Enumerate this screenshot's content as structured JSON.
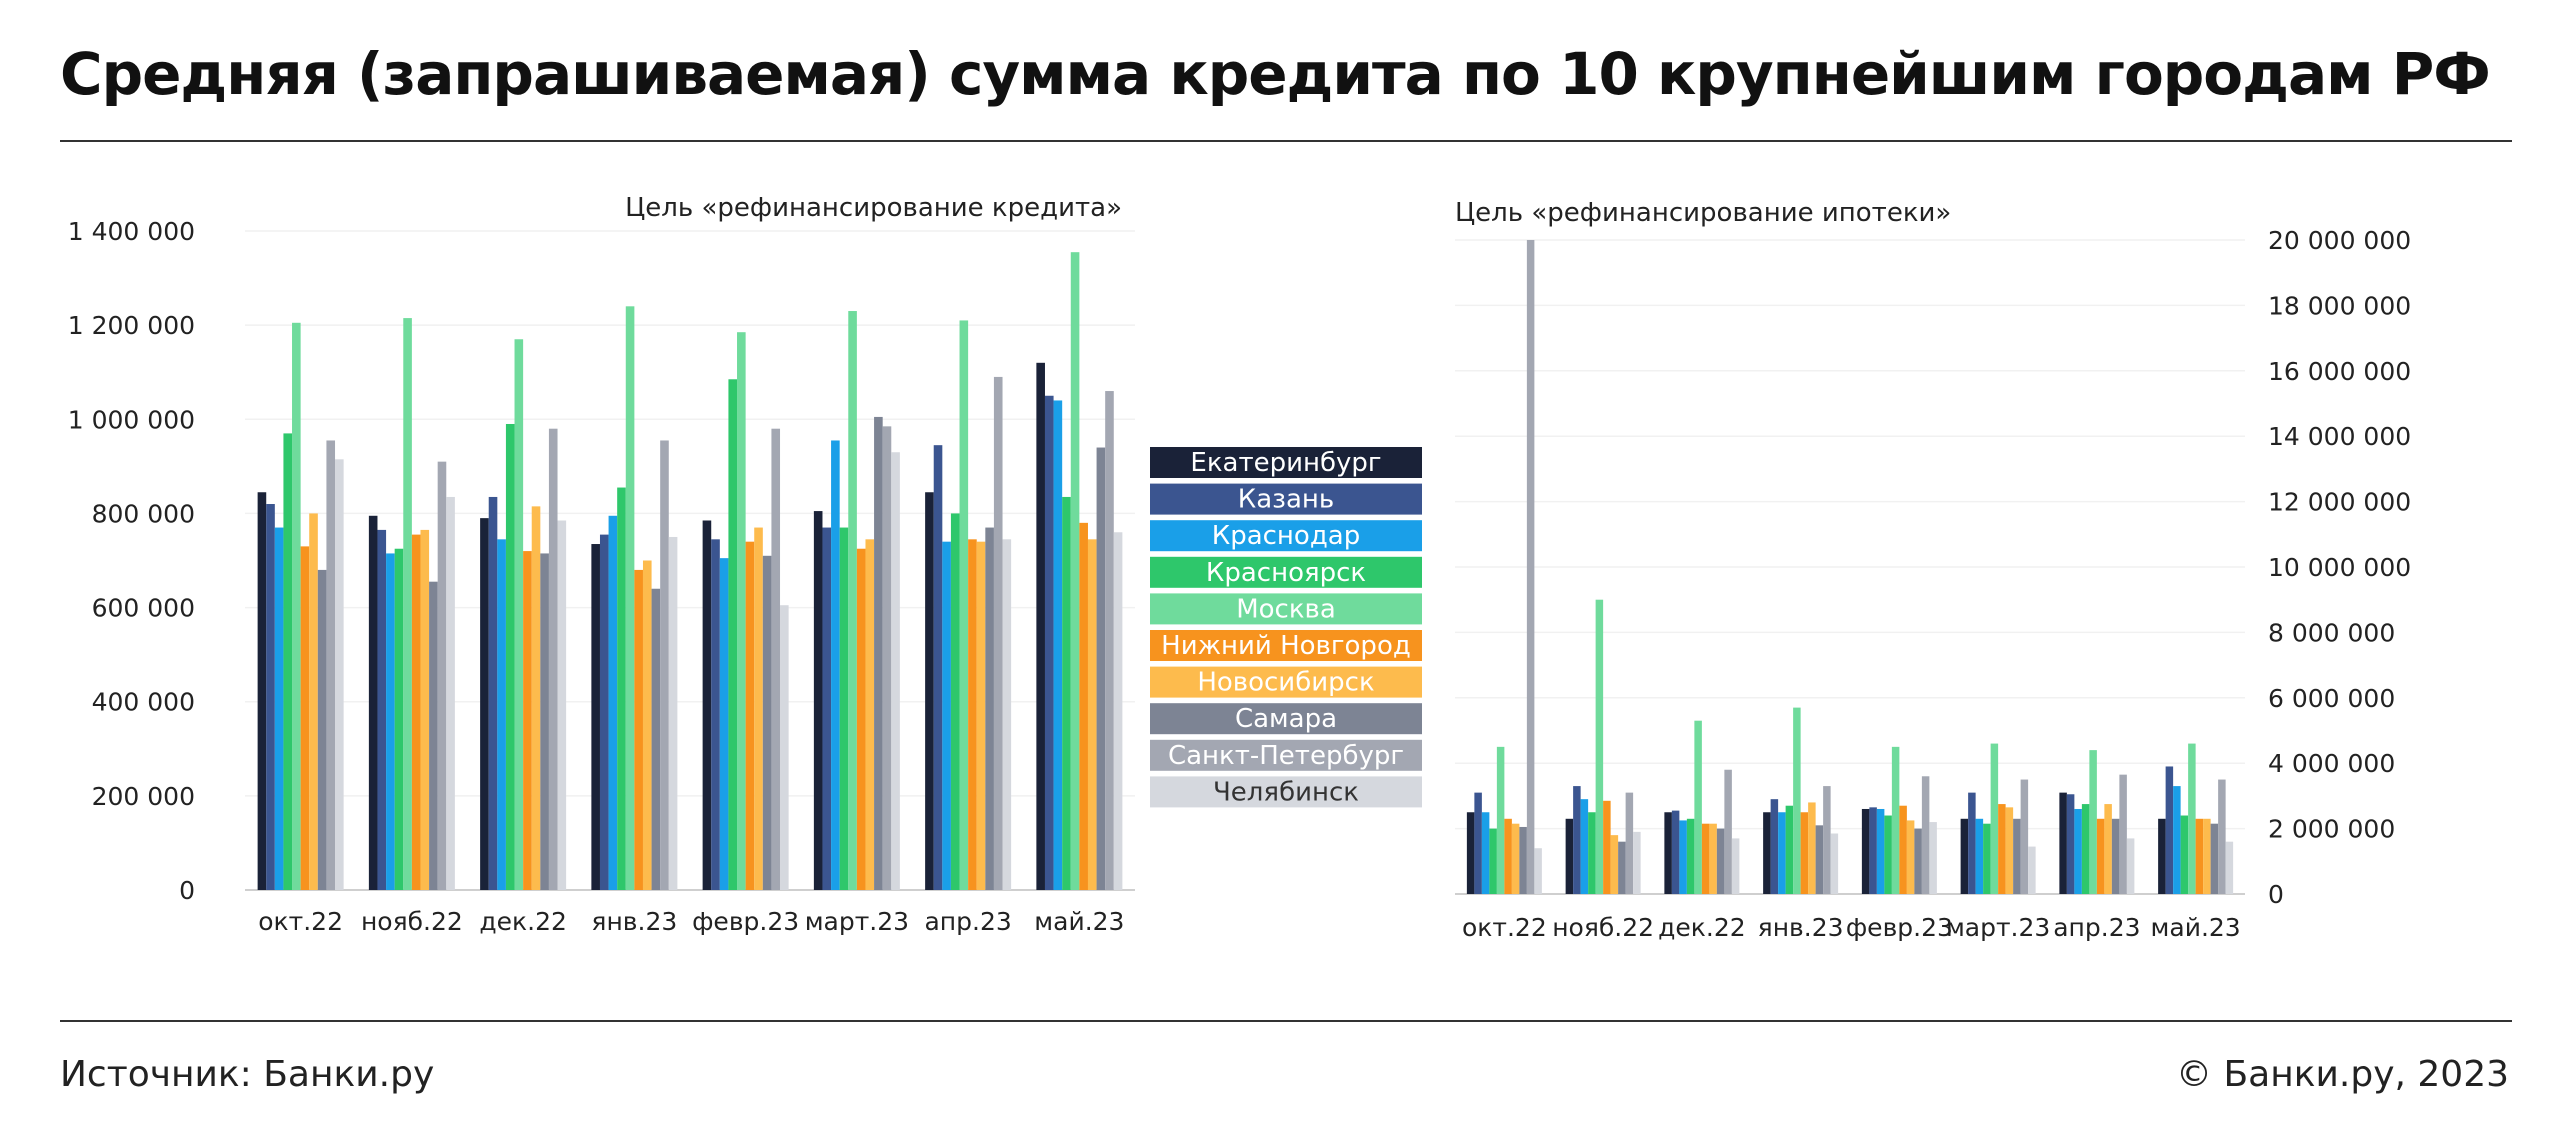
{
  "title": "Средняя (запрашиваемая) сумма кредита по 10 крупнейшим городам РФ",
  "footer": {
    "source": "Источник: Банки.ру",
    "copyright": "© Банки.ру, 2023"
  },
  "colors": {
    "Екатеринбург": "#1a2238",
    "Казань": "#3b5590",
    "Краснодар": "#1a9fe8",
    "Красноярск": "#2ec76b",
    "Москва": "#6fdb9c",
    "Нижний Новгород": "#f7931e",
    "Новосибирск": "#fdbb4d",
    "Самара": "#7d8494",
    "Санкт-Петербург": "#a3a7b2",
    "Челябинск": "#d5d8de"
  },
  "legend": [
    "Екатеринбург",
    "Казань",
    "Краснодар",
    "Красноярск",
    "Москва",
    "Нижний Новгород",
    "Новосибирск",
    "Самара",
    "Санкт-Петербург",
    "Челябинск"
  ],
  "chart_data": [
    {
      "type": "bar",
      "title": "Цель «рефинансирование кредита»",
      "categories": [
        "окт.22",
        "нояб.22",
        "дек.22",
        "янв.23",
        "февр.23",
        "март.23",
        "апр.23",
        "май.23"
      ],
      "ylim": [
        0,
        1400000
      ],
      "yticks": [
        "0",
        "200 000",
        "400 000",
        "600 000",
        "800 000",
        "1 000 000",
        "1 200 000",
        "1 400 000"
      ],
      "yaxis_side": "left",
      "series": [
        {
          "name": "Екатеринбург",
          "values": [
            845000,
            795000,
            790000,
            735000,
            785000,
            805000,
            845000,
            1120000
          ]
        },
        {
          "name": "Казань",
          "values": [
            820000,
            765000,
            835000,
            755000,
            745000,
            770000,
            945000,
            1050000
          ]
        },
        {
          "name": "Краснодар",
          "values": [
            770000,
            715000,
            745000,
            795000,
            705000,
            955000,
            740000,
            1040000
          ]
        },
        {
          "name": "Красноярск",
          "values": [
            970000,
            725000,
            990000,
            855000,
            1085000,
            770000,
            800000,
            835000
          ]
        },
        {
          "name": "Москва",
          "values": [
            1205000,
            1215000,
            1170000,
            1240000,
            1185000,
            1230000,
            1210000,
            1355000
          ]
        },
        {
          "name": "Нижний Новгород",
          "values": [
            730000,
            755000,
            720000,
            680000,
            740000,
            725000,
            745000,
            780000
          ]
        },
        {
          "name": "Новосибирск",
          "values": [
            800000,
            765000,
            815000,
            700000,
            770000,
            745000,
            740000,
            745000
          ]
        },
        {
          "name": "Самара",
          "values": [
            680000,
            655000,
            715000,
            640000,
            710000,
            1005000,
            770000,
            940000
          ]
        },
        {
          "name": "Санкт-Петербург",
          "values": [
            955000,
            910000,
            980000,
            955000,
            980000,
            985000,
            1090000,
            1060000
          ]
        },
        {
          "name": "Челябинск",
          "values": [
            915000,
            835000,
            785000,
            750000,
            605000,
            930000,
            745000,
            760000
          ]
        }
      ]
    },
    {
      "type": "bar",
      "title": "Цель «рефинансирование ипотеки»",
      "categories": [
        "окт.22",
        "нояб.22",
        "дек.22",
        "янв.23",
        "февр.23",
        "март.23",
        "апр.23",
        "май.23"
      ],
      "ylim": [
        0,
        20000000
      ],
      "yticks": [
        "0",
        "2 000 000",
        "4 000 000",
        "6 000 000",
        "8 000 000",
        "10 000 000",
        "12 000 000",
        "14 000 000",
        "16 000 000",
        "18 000 000",
        "20 000 000"
      ],
      "yaxis_side": "right",
      "series": [
        {
          "name": "Екатеринбург",
          "values": [
            2500000,
            2300000,
            2500000,
            2500000,
            2600000,
            2300000,
            3100000,
            2300000
          ]
        },
        {
          "name": "Казань",
          "values": [
            3100000,
            3300000,
            2550000,
            2900000,
            2650000,
            3100000,
            3050000,
            3900000
          ]
        },
        {
          "name": "Краснодар",
          "values": [
            2500000,
            2900000,
            2250000,
            2500000,
            2600000,
            2300000,
            2600000,
            3300000
          ]
        },
        {
          "name": "Красноярск",
          "values": [
            2000000,
            2500000,
            2300000,
            2700000,
            2400000,
            2150000,
            2750000,
            2400000
          ]
        },
        {
          "name": "Москва",
          "values": [
            4500000,
            9000000,
            5300000,
            5700000,
            4500000,
            4600000,
            4400000,
            4600000
          ]
        },
        {
          "name": "Нижний Новгород",
          "values": [
            2300000,
            2850000,
            2150000,
            2500000,
            2700000,
            2750000,
            2300000,
            2300000
          ]
        },
        {
          "name": "Новосибирск",
          "values": [
            2150000,
            1800000,
            2150000,
            2800000,
            2250000,
            2650000,
            2750000,
            2300000
          ]
        },
        {
          "name": "Самара",
          "values": [
            2050000,
            1600000,
            2000000,
            2100000,
            2000000,
            2300000,
            2300000,
            2150000
          ]
        },
        {
          "name": "Санкт-Петербург",
          "values": [
            20000000,
            3100000,
            3800000,
            3300000,
            3600000,
            3500000,
            3650000,
            3500000
          ]
        },
        {
          "name": "Челябинск",
          "values": [
            1400000,
            1900000,
            1700000,
            1850000,
            2200000,
            1450000,
            1700000,
            1600000
          ]
        }
      ]
    }
  ]
}
